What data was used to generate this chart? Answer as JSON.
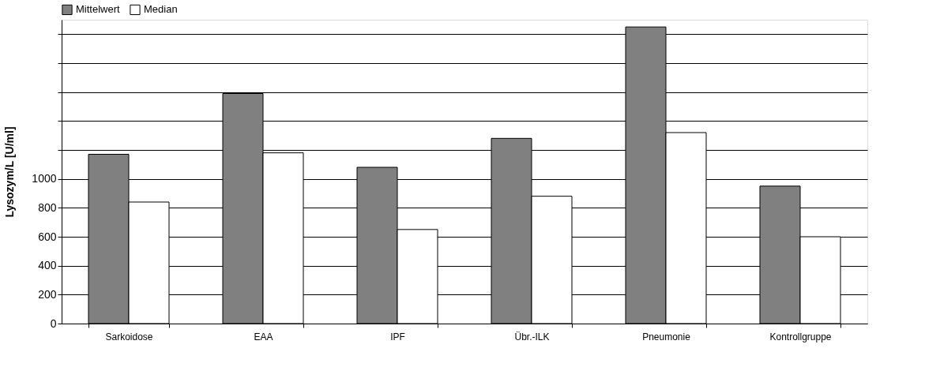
{
  "chart_data": {
    "type": "bar",
    "ylabel": "Lysozym/L [U/ml]",
    "categories": [
      "Sarkoidose",
      "EAA",
      "IPF",
      "Übr.-ILK",
      "Pneumonie",
      "Kontrollgruppe"
    ],
    "series": [
      {
        "name": "Mittelwert",
        "color": "#808080",
        "values": [
          1170,
          1590,
          1080,
          1280,
          2050,
          950
        ]
      },
      {
        "name": "Median",
        "color": "#ffffff",
        "values": [
          840,
          1180,
          650,
          880,
          1320,
          600
        ]
      }
    ],
    "ylim": [
      0,
      2100
    ],
    "yticks": [
      0,
      200,
      400,
      600,
      800,
      1000,
      {
        "value": 1200,
        "label": null
      },
      {
        "value": 1400,
        "label": null
      },
      {
        "value": 1600,
        "label": null
      },
      {
        "value": 1800,
        "label": null
      },
      {
        "value": 2000,
        "label": null
      }
    ],
    "grid": "y",
    "legend": "top left"
  }
}
